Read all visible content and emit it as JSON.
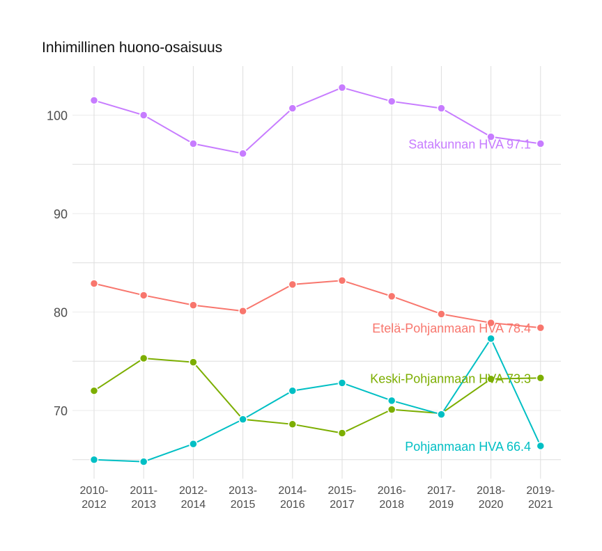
{
  "chart_data": {
    "type": "line",
    "title": "Inhimillinen huono-osaisuus",
    "xlabel": "",
    "ylabel": "",
    "ylim": [
      64,
      105
    ],
    "yticks": [
      70,
      80,
      90,
      100
    ],
    "grid": true,
    "categories": [
      [
        "2010-",
        "2012"
      ],
      [
        "2011-",
        "2013"
      ],
      [
        "2012-",
        "2014"
      ],
      [
        "2013-",
        "2015"
      ],
      [
        "2014-",
        "2016"
      ],
      [
        "2015-",
        "2017"
      ],
      [
        "2016-",
        "2018"
      ],
      [
        "2017-",
        "2019"
      ],
      [
        "2018-",
        "2020"
      ],
      [
        "2019-",
        "2021"
      ]
    ],
    "series": [
      {
        "name": "Satakunnan HVA",
        "label": "Satakunnan HVA 97.1",
        "color": "#c77cff",
        "values": [
          101.5,
          100.0,
          97.1,
          96.1,
          100.7,
          102.8,
          101.4,
          100.7,
          97.8,
          97.1
        ]
      },
      {
        "name": "Etelä-Pohjanmaan HVA",
        "label": "Etelä-Pohjanmaan HVA 78.4",
        "color": "#f8766d",
        "values": [
          82.9,
          81.7,
          80.7,
          80.1,
          82.8,
          83.2,
          81.6,
          79.8,
          78.9,
          78.4
        ]
      },
      {
        "name": "Keski-Pohjanmaan HVA",
        "label": "Keski-Pohjanmaan HVA 73.3",
        "color": "#7cae00",
        "values": [
          72.0,
          75.3,
          74.9,
          69.1,
          68.6,
          67.7,
          70.1,
          69.7,
          73.2,
          73.3
        ]
      },
      {
        "name": "Pohjanmaan HVA",
        "label": "Pohjanmaan HVA 66.4",
        "color": "#00bfc4",
        "values": [
          65.0,
          64.8,
          66.6,
          69.1,
          72.0,
          72.8,
          71.0,
          69.6,
          77.3,
          66.4
        ]
      }
    ]
  }
}
